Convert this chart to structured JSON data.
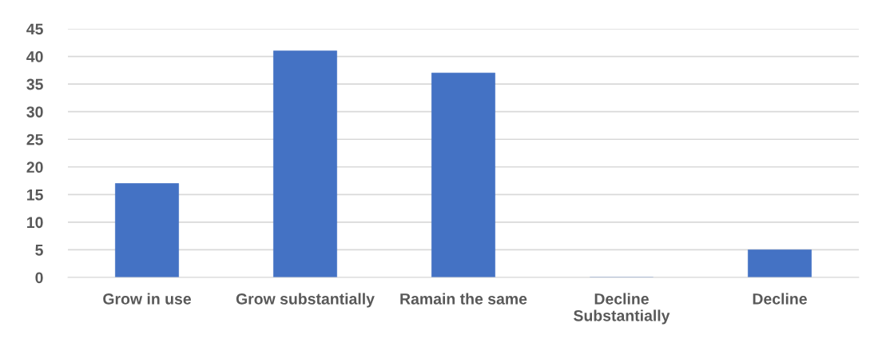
{
  "chart_data": {
    "type": "bar",
    "categories": [
      "Grow in use",
      "Grow substantially",
      "Ramain the same",
      "Decline\nSubstantially",
      "Decline"
    ],
    "values": [
      17,
      41,
      37,
      0,
      5
    ],
    "color": "#4472c4",
    "ylim": [
      0,
      45
    ],
    "yticks": [
      0,
      5,
      10,
      15,
      20,
      25,
      30,
      35,
      40,
      45
    ],
    "grid": "y",
    "legend": false
  }
}
